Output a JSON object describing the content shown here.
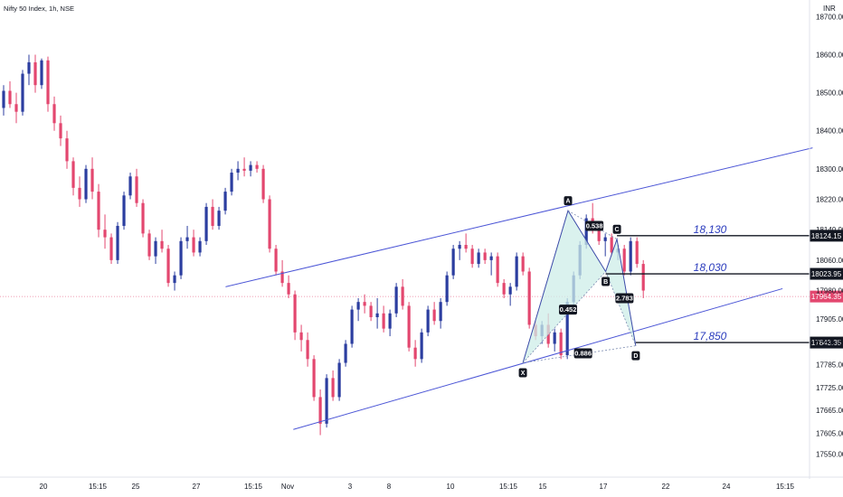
{
  "header": {
    "title": "Nifty 50 Index, 1h, NSE",
    "currency": "INR"
  },
  "colors": {
    "bull": "#2c3ea0",
    "bear": "#e3476f",
    "channel": "#4b55d6",
    "pattern_fill": "#cdeee8",
    "pattern_line": "#3b4aa8",
    "level_line": "#131722",
    "current_price": "#e3476f"
  },
  "chart_data": {
    "type": "candlestick",
    "y_axis": {
      "min": 17530,
      "max": 18720,
      "ticks": [
        "18700.00",
        "18600.00",
        "18500.00",
        "18400.00",
        "18300.00",
        "18220.00",
        "18140.00",
        "18060.00",
        "17980.00",
        "17905.00",
        "17845.00",
        "17785.00",
        "17725.00",
        "17665.00",
        "17605.00",
        "17550.00"
      ]
    },
    "x_axis": {
      "ticks": [
        "20",
        "15:15",
        "25",
        "27",
        "15:15",
        "Nov",
        "3",
        "8",
        "10",
        "15:15",
        "15",
        "17",
        "22",
        "24",
        "15:15"
      ]
    },
    "candles": [
      {
        "o": 18460,
        "h": 18520,
        "l": 18440,
        "c": 18505
      },
      {
        "o": 18505,
        "h": 18530,
        "l": 18460,
        "c": 18470
      },
      {
        "o": 18470,
        "h": 18500,
        "l": 18420,
        "c": 18450
      },
      {
        "o": 18450,
        "h": 18560,
        "l": 18440,
        "c": 18550
      },
      {
        "o": 18550,
        "h": 18600,
        "l": 18520,
        "c": 18580
      },
      {
        "o": 18580,
        "h": 18600,
        "l": 18500,
        "c": 18520
      },
      {
        "o": 18520,
        "h": 18590,
        "l": 18510,
        "c": 18585
      },
      {
        "o": 18585,
        "h": 18595,
        "l": 18450,
        "c": 18470
      },
      {
        "o": 18470,
        "h": 18490,
        "l": 18400,
        "c": 18420
      },
      {
        "o": 18420,
        "h": 18440,
        "l": 18360,
        "c": 18380
      },
      {
        "o": 18380,
        "h": 18400,
        "l": 18300,
        "c": 18320
      },
      {
        "o": 18320,
        "h": 18330,
        "l": 18230,
        "c": 18250
      },
      {
        "o": 18250,
        "h": 18280,
        "l": 18200,
        "c": 18220
      },
      {
        "o": 18220,
        "h": 18310,
        "l": 18210,
        "c": 18300
      },
      {
        "o": 18300,
        "h": 18330,
        "l": 18220,
        "c": 18240
      },
      {
        "o": 18240,
        "h": 18260,
        "l": 18120,
        "c": 18140
      },
      {
        "o": 18140,
        "h": 18180,
        "l": 18090,
        "c": 18120
      },
      {
        "o": 18120,
        "h": 18130,
        "l": 18050,
        "c": 18060
      },
      {
        "o": 18060,
        "h": 18160,
        "l": 18050,
        "c": 18150
      },
      {
        "o": 18150,
        "h": 18240,
        "l": 18140,
        "c": 18230
      },
      {
        "o": 18230,
        "h": 18290,
        "l": 18220,
        "c": 18280
      },
      {
        "o": 18280,
        "h": 18300,
        "l": 18200,
        "c": 18210
      },
      {
        "o": 18210,
        "h": 18220,
        "l": 18120,
        "c": 18130
      },
      {
        "o": 18130,
        "h": 18140,
        "l": 18060,
        "c": 18070
      },
      {
        "o": 18070,
        "h": 18120,
        "l": 18050,
        "c": 18110
      },
      {
        "o": 18110,
        "h": 18140,
        "l": 18080,
        "c": 18090
      },
      {
        "o": 18090,
        "h": 18100,
        "l": 17990,
        "c": 18000
      },
      {
        "o": 18000,
        "h": 18030,
        "l": 17980,
        "c": 18020
      },
      {
        "o": 18020,
        "h": 18120,
        "l": 18010,
        "c": 18110
      },
      {
        "o": 18110,
        "h": 18150,
        "l": 18090,
        "c": 18120
      },
      {
        "o": 18120,
        "h": 18140,
        "l": 18070,
        "c": 18080
      },
      {
        "o": 18080,
        "h": 18120,
        "l": 18070,
        "c": 18110
      },
      {
        "o": 18110,
        "h": 18210,
        "l": 18100,
        "c": 18200
      },
      {
        "o": 18200,
        "h": 18220,
        "l": 18140,
        "c": 18150
      },
      {
        "o": 18150,
        "h": 18200,
        "l": 18140,
        "c": 18190
      },
      {
        "o": 18190,
        "h": 18250,
        "l": 18180,
        "c": 18240
      },
      {
        "o": 18240,
        "h": 18300,
        "l": 18230,
        "c": 18290
      },
      {
        "o": 18290,
        "h": 18320,
        "l": 18270,
        "c": 18300
      },
      {
        "o": 18300,
        "h": 18330,
        "l": 18280,
        "c": 18295
      },
      {
        "o": 18295,
        "h": 18320,
        "l": 18280,
        "c": 18310
      },
      {
        "o": 18310,
        "h": 18320,
        "l": 18290,
        "c": 18300
      },
      {
        "o": 18300,
        "h": 18310,
        "l": 18210,
        "c": 18220
      },
      {
        "o": 18220,
        "h": 18230,
        "l": 18080,
        "c": 18090
      },
      {
        "o": 18090,
        "h": 18100,
        "l": 18020,
        "c": 18030
      },
      {
        "o": 18030,
        "h": 18060,
        "l": 17990,
        "c": 18000
      },
      {
        "o": 18000,
        "h": 18020,
        "l": 17960,
        "c": 17970
      },
      {
        "o": 17970,
        "h": 17980,
        "l": 17850,
        "c": 17870
      },
      {
        "o": 17870,
        "h": 17890,
        "l": 17820,
        "c": 17850
      },
      {
        "o": 17850,
        "h": 17870,
        "l": 17780,
        "c": 17800
      },
      {
        "o": 17800,
        "h": 17810,
        "l": 17690,
        "c": 17700
      },
      {
        "o": 17700,
        "h": 17720,
        "l": 17600,
        "c": 17630
      },
      {
        "o": 17630,
        "h": 17760,
        "l": 17620,
        "c": 17750
      },
      {
        "o": 17750,
        "h": 17770,
        "l": 17690,
        "c": 17700
      },
      {
        "o": 17700,
        "h": 17800,
        "l": 17690,
        "c": 17790
      },
      {
        "o": 17790,
        "h": 17850,
        "l": 17780,
        "c": 17840
      },
      {
        "o": 17840,
        "h": 17940,
        "l": 17830,
        "c": 17930
      },
      {
        "o": 17930,
        "h": 17960,
        "l": 17900,
        "c": 17950
      },
      {
        "o": 17950,
        "h": 17970,
        "l": 17920,
        "c": 17940
      },
      {
        "o": 17940,
        "h": 17950,
        "l": 17900,
        "c": 17910
      },
      {
        "o": 17910,
        "h": 17960,
        "l": 17880,
        "c": 17920
      },
      {
        "o": 17920,
        "h": 17940,
        "l": 17870,
        "c": 17880
      },
      {
        "o": 17880,
        "h": 17930,
        "l": 17860,
        "c": 17920
      },
      {
        "o": 17920,
        "h": 18000,
        "l": 17910,
        "c": 17990
      },
      {
        "o": 17990,
        "h": 18010,
        "l": 17930,
        "c": 17940
      },
      {
        "o": 17940,
        "h": 17950,
        "l": 17820,
        "c": 17830
      },
      {
        "o": 17830,
        "h": 17850,
        "l": 17780,
        "c": 17800
      },
      {
        "o": 17800,
        "h": 17880,
        "l": 17790,
        "c": 17870
      },
      {
        "o": 17870,
        "h": 17940,
        "l": 17860,
        "c": 17930
      },
      {
        "o": 17930,
        "h": 17950,
        "l": 17890,
        "c": 17900
      },
      {
        "o": 17900,
        "h": 17960,
        "l": 17880,
        "c": 17950
      },
      {
        "o": 17950,
        "h": 18030,
        "l": 17940,
        "c": 18020
      },
      {
        "o": 18020,
        "h": 18100,
        "l": 18010,
        "c": 18090
      },
      {
        "o": 18090,
        "h": 18110,
        "l": 18060,
        "c": 18100
      },
      {
        "o": 18100,
        "h": 18130,
        "l": 18080,
        "c": 18090
      },
      {
        "o": 18090,
        "h": 18100,
        "l": 18040,
        "c": 18050
      },
      {
        "o": 18050,
        "h": 18090,
        "l": 18040,
        "c": 18080
      },
      {
        "o": 18080,
        "h": 18090,
        "l": 18050,
        "c": 18060
      },
      {
        "o": 18060,
        "h": 18080,
        "l": 18020,
        "c": 18070
      },
      {
        "o": 18070,
        "h": 18080,
        "l": 17990,
        "c": 18000
      },
      {
        "o": 18000,
        "h": 18010,
        "l": 17960,
        "c": 17970
      },
      {
        "o": 17970,
        "h": 18000,
        "l": 17940,
        "c": 17990
      },
      {
        "o": 17990,
        "h": 18080,
        "l": 17980,
        "c": 18070
      },
      {
        "o": 18070,
        "h": 18080,
        "l": 18020,
        "c": 18030
      },
      {
        "o": 18030,
        "h": 18040,
        "l": 17880,
        "c": 17890
      },
      {
        "o": 17890,
        "h": 17900,
        "l": 17850,
        "c": 17860
      },
      {
        "o": 17860,
        "h": 17900,
        "l": 17840,
        "c": 17890
      },
      {
        "o": 17890,
        "h": 17920,
        "l": 17830,
        "c": 17840
      },
      {
        "o": 17840,
        "h": 17880,
        "l": 17820,
        "c": 17870
      },
      {
        "o": 17870,
        "h": 17880,
        "l": 17800,
        "c": 17810
      },
      {
        "o": 17810,
        "h": 17960,
        "l": 17800,
        "c": 17950
      },
      {
        "o": 17950,
        "h": 18030,
        "l": 17940,
        "c": 18020
      },
      {
        "o": 18020,
        "h": 18110,
        "l": 18010,
        "c": 18100
      },
      {
        "o": 18100,
        "h": 18180,
        "l": 18090,
        "c": 18170
      },
      {
        "o": 18170,
        "h": 18210,
        "l": 18130,
        "c": 18150
      },
      {
        "o": 18150,
        "h": 18160,
        "l": 18100,
        "c": 18110
      },
      {
        "o": 18110,
        "h": 18130,
        "l": 18070,
        "c": 18120
      },
      {
        "o": 18120,
        "h": 18130,
        "l": 18070,
        "c": 18080
      },
      {
        "o": 18080,
        "h": 18100,
        "l": 18060,
        "c": 18090
      },
      {
        "o": 18090,
        "h": 18100,
        "l": 18020,
        "c": 18030
      },
      {
        "o": 18030,
        "h": 18120,
        "l": 18020,
        "c": 18110
      },
      {
        "o": 18110,
        "h": 18120,
        "l": 18040,
        "c": 18050
      },
      {
        "o": 18050,
        "h": 18060,
        "l": 17960,
        "c": 17980
      }
    ],
    "channel": {
      "upper": [
        {
          "i": 59,
          "p": 17990
        },
        {
          "i": 215,
          "p": 18355
        }
      ],
      "lower": [
        {
          "i": 77,
          "p": 17615
        },
        {
          "i": 207,
          "p": 17985
        }
      ]
    },
    "harmonic": {
      "points": [
        {
          "label": "X",
          "i": 138,
          "p": 17790
        },
        {
          "label": "A",
          "i": 150,
          "p": 18190
        },
        {
          "label": "B",
          "i": 160,
          "p": 18030
        },
        {
          "label": "C",
          "i": 163,
          "p": 18115
        },
        {
          "label": "D",
          "i": 168,
          "p": 17835
        }
      ],
      "ratios": [
        {
          "text": "0.538",
          "i": 157,
          "p": 18150
        },
        {
          "text": "0.452",
          "i": 150,
          "p": 17930
        },
        {
          "text": "2.783",
          "i": 165,
          "p": 17960
        },
        {
          "text": "0.886",
          "i": 154,
          "p": 17815
        }
      ]
    },
    "levels": [
      {
        "label": "18,130",
        "price": 18124.15,
        "tag": "18124.15",
        "start_i": 163
      },
      {
        "label": "18,030",
        "price": 18023.95,
        "tag": "18023.95",
        "start_i": 160
      },
      {
        "label": "17,850",
        "price": 17843.35,
        "tag": "17843.35",
        "start_i": 168
      }
    ],
    "current_price": {
      "price": 17964.35,
      "tag": "17964.35"
    }
  }
}
